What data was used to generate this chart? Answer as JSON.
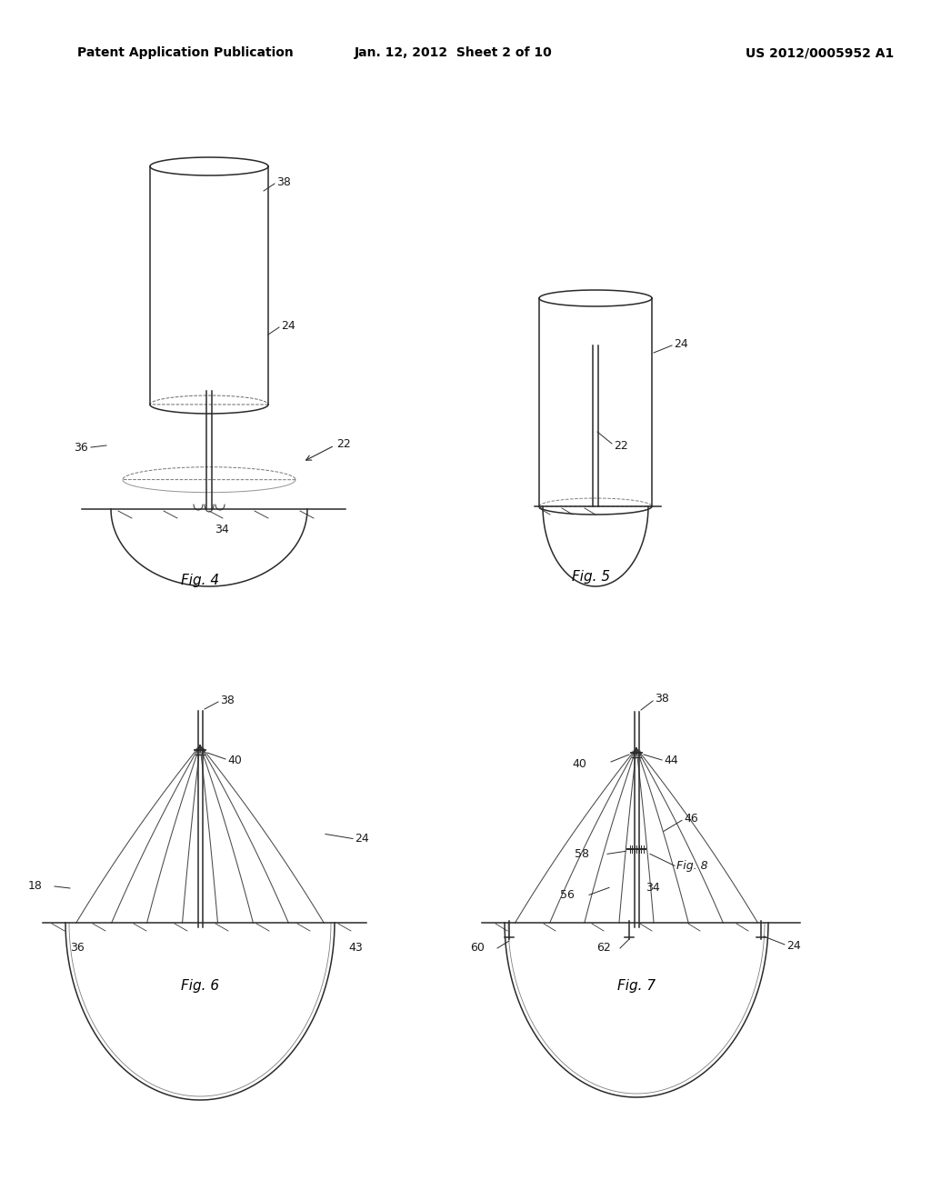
{
  "bg_color": "#ffffff",
  "header_left": "Patent Application Publication",
  "header_mid": "Jan. 12, 2012  Sheet 2 of 10",
  "header_right": "US 2012/0005952 A1",
  "line_color": "#2a2a2a",
  "label_color": "#1a1a1a",
  "font_size_header": 10,
  "font_size_label": 9,
  "font_size_caption": 11
}
